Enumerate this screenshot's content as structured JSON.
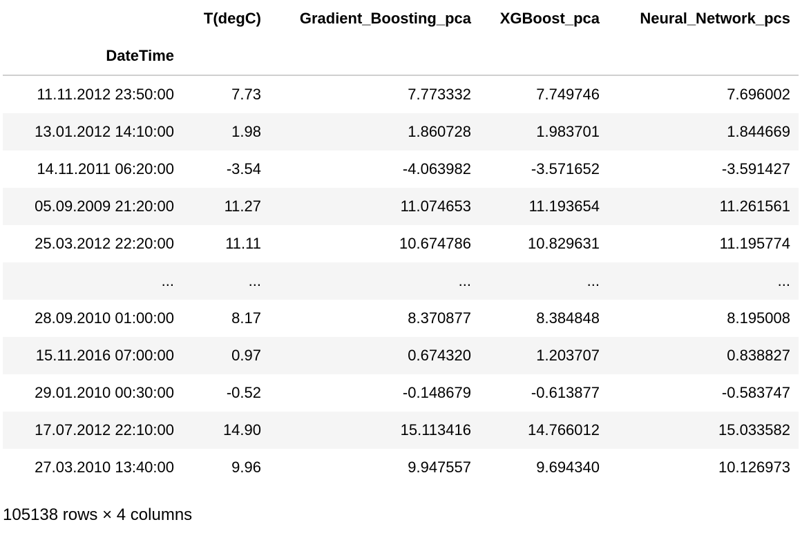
{
  "table": {
    "columns": [
      "T(degC)",
      "Gradient_Boosting_pca",
      "XGBoost_pca",
      "Neural_Network_pcs"
    ],
    "index_name": "DateTime",
    "rows": [
      {
        "index": "11.11.2012 23:50:00",
        "cells": [
          "7.73",
          "7.773332",
          "7.749746",
          "7.696002"
        ]
      },
      {
        "index": "13.01.2012 14:10:00",
        "cells": [
          "1.98",
          "1.860728",
          "1.983701",
          "1.844669"
        ]
      },
      {
        "index": "14.11.2011 06:20:00",
        "cells": [
          "-3.54",
          "-4.063982",
          "-3.571652",
          "-3.591427"
        ]
      },
      {
        "index": "05.09.2009 21:20:00",
        "cells": [
          "11.27",
          "11.074653",
          "11.193654",
          "11.261561"
        ]
      },
      {
        "index": "25.03.2012 22:20:00",
        "cells": [
          "11.11",
          "10.674786",
          "10.829631",
          "11.195774"
        ]
      },
      {
        "index": "...",
        "cells": [
          "...",
          "...",
          "...",
          "..."
        ]
      },
      {
        "index": "28.09.2010 01:00:00",
        "cells": [
          "8.17",
          "8.370877",
          "8.384848",
          "8.195008"
        ]
      },
      {
        "index": "15.11.2016 07:00:00",
        "cells": [
          "0.97",
          "0.674320",
          "1.203707",
          "0.838827"
        ]
      },
      {
        "index": "29.01.2010 00:30:00",
        "cells": [
          "-0.52",
          "-0.148679",
          "-0.613877",
          "-0.583747"
        ]
      },
      {
        "index": "17.07.2012 22:10:00",
        "cells": [
          "14.90",
          "15.113416",
          "14.766012",
          "15.033582"
        ]
      },
      {
        "index": "27.03.2010 13:40:00",
        "cells": [
          "9.96",
          "9.947557",
          "9.694340",
          "10.126973"
        ]
      }
    ]
  },
  "summary": "105138 rows × 4 columns"
}
